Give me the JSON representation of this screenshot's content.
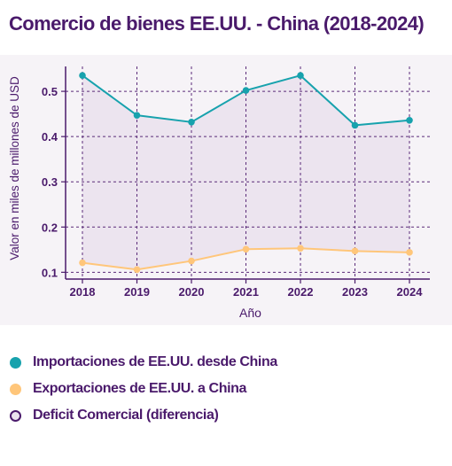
{
  "title": "Comercio de bienes EE.UU. - China (2018-2024)",
  "colors": {
    "title": "#4a1a6b",
    "axis": "#4a1a6b",
    "grid": "#5a2a78",
    "panel": "#f6f3f7",
    "fill": "#ece4ef",
    "imports": "#17a2ad",
    "exports": "#ffc67a",
    "deficit_marker_fill": "#ece4ef",
    "deficit_marker_border": "#4a1a6b"
  },
  "chart_data": {
    "type": "line",
    "x": [
      "2018",
      "2019",
      "2020",
      "2021",
      "2022",
      "2023",
      "2024"
    ],
    "xlabel": "Año",
    "ylabel": "Valor en miles de millones de USD",
    "ylim": [
      0.085,
      0.555
    ],
    "yticks": [
      0.1,
      0.2,
      0.3,
      0.4,
      0.5
    ],
    "ytick_labels": [
      "0.1",
      "0.2",
      "0.3",
      "0.4",
      "0.5"
    ],
    "grid": true,
    "legend_position": "bottom",
    "series": [
      {
        "name": "Importaciones de EE.UU. desde China",
        "values": [
          0.535,
          0.447,
          0.432,
          0.502,
          0.535,
          0.425,
          0.436
        ]
      },
      {
        "name": "Exportaciones de EE.UU. a China",
        "values": [
          0.121,
          0.106,
          0.125,
          0.151,
          0.153,
          0.147,
          0.144
        ]
      }
    ],
    "fill_between": {
      "name": "Deficit Comercial (diferencia)"
    }
  },
  "legend": [
    {
      "label": "Importaciones de EE.UU. desde China",
      "marker": "imports"
    },
    {
      "label": "Exportaciones de EE.UU. a China",
      "marker": "exports"
    },
    {
      "label": "Deficit Comercial (diferencia)",
      "marker": "deficit"
    }
  ]
}
